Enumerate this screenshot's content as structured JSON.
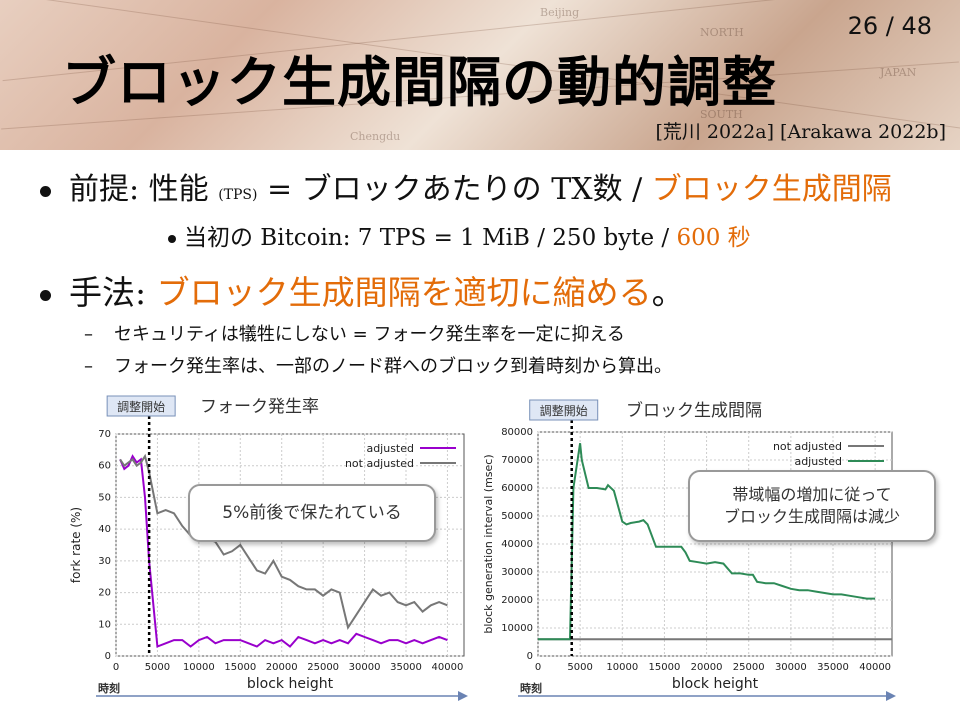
{
  "page_number": "26 / 48",
  "title": "ブロック生成間隔の動的調整",
  "citation": "[荒川 2022a] [Arakawa 2022b]",
  "header_map_labels": [
    "Beijing",
    "NORTH",
    "JAPAN",
    "SOUTH",
    "Chengdu"
  ],
  "bullet1": {
    "prefix": "前提: 性能 ",
    "small": "(TPS)",
    "mid": " = ブロックあたりの TX数 / ",
    "highlight": "ブロック生成間隔"
  },
  "bullet1_sub": {
    "text": "当初の Bitcoin: 7 TPS = 1 MiB / 250 byte / ",
    "highlight": "600 秒"
  },
  "bullet2": {
    "prefix": "手法: ",
    "highlight": "ブロック生成間隔を適切に縮める",
    "suffix": "。"
  },
  "sub1": "セキュリティは犠牲にしない = フォーク発生率を一定に抑える",
  "sub2": "フォーク発生率は、一部のノード群へのブロック到着時刻から算出。",
  "charts": {
    "adjust_start_label": "調整開始",
    "time_label": "時刻",
    "xlabel": "block height",
    "left": {
      "title": "フォーク発生率",
      "ylabel": "fork rate (%)",
      "callout": "5%前後で保たれている"
    },
    "right": {
      "title": "ブロック生成間隔",
      "ylabel": "block generation interval (msec)",
      "callout_line1": "帯域幅の増加に従って",
      "callout_line2": "ブロック生成間隔は減少"
    }
  },
  "colors": {
    "orange": "#e36c09",
    "purple": "#9900cc",
    "gray": "#777777",
    "green": "#2e8b57"
  },
  "chart_data": [
    {
      "type": "line",
      "title": "フォーク発生率",
      "xlabel": "block height",
      "ylabel": "fork rate (%)",
      "xlim": [
        0,
        42000
      ],
      "ylim": [
        0,
        70
      ],
      "xticks": [
        0,
        5000,
        10000,
        15000,
        20000,
        25000,
        30000,
        35000,
        40000
      ],
      "yticks": [
        0,
        10,
        20,
        30,
        40,
        50,
        60,
        70
      ],
      "legend": "top-right",
      "series": [
        {
          "name": "adjusted",
          "color": "#9900cc",
          "x": [
            500,
            1000,
            1500,
            2000,
            2500,
            3000,
            3500,
            4000,
            5000,
            6000,
            7000,
            8000,
            9000,
            10000,
            11000,
            12000,
            13000,
            14000,
            15000,
            16000,
            17000,
            18000,
            19000,
            20000,
            21000,
            22000,
            23000,
            24000,
            25000,
            26000,
            27000,
            28000,
            29000,
            30000,
            31000,
            32000,
            33000,
            34000,
            35000,
            36000,
            37000,
            38000,
            39000,
            40000
          ],
          "y": [
            62,
            59,
            60,
            63,
            61,
            62,
            50,
            30,
            3,
            4,
            5,
            5,
            3,
            5,
            6,
            4,
            5,
            5,
            5,
            4,
            3,
            5,
            4,
            5,
            3,
            6,
            5,
            4,
            5,
            4,
            5,
            4,
            7,
            6,
            5,
            4,
            5,
            5,
            4,
            5,
            4,
            5,
            6,
            5
          ]
        },
        {
          "name": "not adjusted",
          "color": "#777777",
          "x": [
            500,
            1000,
            1500,
            2000,
            2500,
            3000,
            3500,
            4000,
            5000,
            6000,
            7000,
            8000,
            9000,
            10000,
            11000,
            12000,
            13000,
            14000,
            15000,
            16000,
            17000,
            18000,
            19000,
            20000,
            21000,
            22000,
            23000,
            24000,
            25000,
            26000,
            27000,
            28000,
            29000,
            30000,
            31000,
            32000,
            33000,
            34000,
            35000,
            36000,
            37000,
            38000,
            39000,
            40000
          ],
          "y": [
            62,
            60,
            61,
            62,
            60,
            61,
            63,
            58,
            45,
            46,
            45,
            41,
            38,
            40,
            37,
            36,
            32,
            33,
            35,
            31,
            27,
            26,
            30,
            25,
            24,
            22,
            21,
            21,
            19,
            21,
            20,
            9,
            13,
            17,
            21,
            19,
            20,
            17,
            16,
            17,
            14,
            16,
            17,
            16
          ]
        }
      ]
    },
    {
      "type": "line",
      "title": "ブロック生成間隔",
      "xlabel": "block height",
      "ylabel": "block generation interval (msec)",
      "xlim": [
        0,
        42000
      ],
      "ylim": [
        0,
        80000
      ],
      "xticks": [
        0,
        5000,
        10000,
        15000,
        20000,
        25000,
        30000,
        35000,
        40000
      ],
      "yticks": [
        0,
        10000,
        20000,
        30000,
        40000,
        50000,
        60000,
        70000,
        80000
      ],
      "legend": "top-right",
      "series": [
        {
          "name": "not adjusted",
          "color": "#777777",
          "x": [
            0,
            42000
          ],
          "y": [
            6000,
            6000
          ]
        },
        {
          "name": "adjusted",
          "color": "#2e8b57",
          "x": [
            0,
            3800,
            4200,
            5000,
            5200,
            6000,
            7000,
            8000,
            8300,
            9000,
            10000,
            10500,
            11000,
            12000,
            12500,
            13000,
            14000,
            14500,
            15000,
            16000,
            17000,
            17500,
            18000,
            19000,
            20000,
            21000,
            22000,
            23000,
            24000,
            25000,
            25500,
            26000,
            27000,
            28000,
            29000,
            30000,
            31000,
            32000,
            33000,
            34000,
            35000,
            36000,
            37000,
            38000,
            39000,
            40000
          ],
          "y": [
            6000,
            6000,
            60000,
            76000,
            70000,
            60000,
            60000,
            59500,
            61000,
            59000,
            48000,
            47000,
            47500,
            48000,
            48500,
            47000,
            39000,
            39000,
            39000,
            39000,
            39000,
            37000,
            34000,
            33500,
            33000,
            33500,
            33000,
            29500,
            29500,
            29000,
            29000,
            26500,
            26000,
            26000,
            25000,
            24000,
            23500,
            23500,
            23000,
            22500,
            22000,
            22000,
            21500,
            21000,
            20500,
            20500
          ]
        }
      ]
    }
  ]
}
